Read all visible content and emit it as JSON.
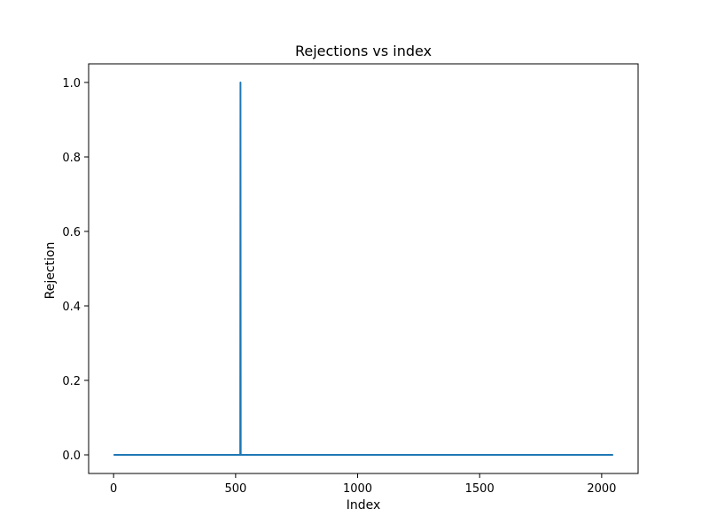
{
  "chart_data": {
    "type": "line",
    "title": "Rejections vs index",
    "xlabel": "Index",
    "ylabel": "Rejection",
    "xlim": [
      -102.35,
      2149.35
    ],
    "ylim": [
      -0.05,
      1.05
    ],
    "xticks": [
      0,
      500,
      1000,
      1500,
      2000
    ],
    "yticks": [
      0.0,
      0.2,
      0.4,
      0.6,
      0.8,
      1.0
    ],
    "xtick_labels": [
      "0",
      "500",
      "1000",
      "1500",
      "2000"
    ],
    "ytick_labels": [
      "0.0",
      "0.2",
      "0.4",
      "0.6",
      "0.8",
      "1.0"
    ],
    "grid": false,
    "series": [
      {
        "color": "#1f77b4",
        "x": [
          0,
          519,
          520,
          521,
          2047
        ],
        "y": [
          0,
          0,
          1,
          0,
          0
        ]
      }
    ]
  }
}
